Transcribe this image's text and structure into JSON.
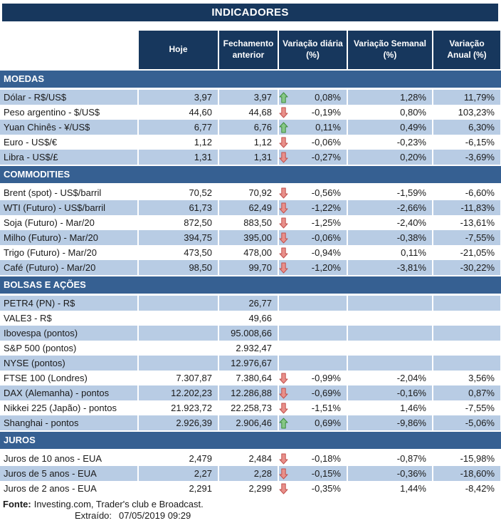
{
  "title": "INDICADORES",
  "columns": [
    "Hoje",
    "Fechamento anterior",
    "Variação diária (%)",
    "Variação Semanal (%)",
    "Variação Anual (%)"
  ],
  "colors": {
    "header_navy": "#17375D",
    "section_blue": "#366092",
    "stripe_blue": "#B8CCE4",
    "arrow_up_fill": "#86C786",
    "arrow_up_stroke": "#3C8C3C",
    "arrow_down_fill": "#E9908A",
    "arrow_down_stroke": "#C0504D"
  },
  "icons": {
    "up": "arrow-up-icon",
    "down": "arrow-down-icon"
  },
  "sections": [
    {
      "id": "moedas",
      "name": "MOEDAS",
      "rows": [
        {
          "label": "Dólar - R$/US$",
          "hoje": "3,97",
          "fechamento": "3,97",
          "arrow": "up",
          "diaria": "0,08%",
          "semanal": "1,28%",
          "anual": "11,79%"
        },
        {
          "label": "Peso argentino - $/US$",
          "hoje": "44,60",
          "fechamento": "44,68",
          "arrow": "down",
          "diaria": "-0,19%",
          "semanal": "0,80%",
          "anual": "103,23%"
        },
        {
          "label": "Yuan Chinês - ¥/US$",
          "hoje": "6,77",
          "fechamento": "6,76",
          "arrow": "up",
          "diaria": "0,11%",
          "semanal": "0,49%",
          "anual": "6,30%"
        },
        {
          "label": "Euro - US$/€",
          "hoje": "1,12",
          "fechamento": "1,12",
          "arrow": "down",
          "diaria": "-0,06%",
          "semanal": "-0,23%",
          "anual": "-6,15%"
        },
        {
          "label": "Libra - US$/£",
          "hoje": "1,31",
          "fechamento": "1,31",
          "arrow": "down",
          "diaria": "-0,27%",
          "semanal": "0,20%",
          "anual": "-3,69%"
        }
      ]
    },
    {
      "id": "commodities",
      "name": "COMMODITIES",
      "rows": [
        {
          "label": "Brent (spot) - US$/barril",
          "hoje": "70,52",
          "fechamento": "70,92",
          "arrow": "down",
          "diaria": "-0,56%",
          "semanal": "-1,59%",
          "anual": "-6,60%"
        },
        {
          "label": "WTI (Futuro) - US$/barril",
          "hoje": "61,73",
          "fechamento": "62,49",
          "arrow": "down",
          "diaria": "-1,22%",
          "semanal": "-2,66%",
          "anual": "-11,83%"
        },
        {
          "label": "Soja (Futuro) - Mar/20",
          "hoje": "872,50",
          "fechamento": "883,50",
          "arrow": "down",
          "diaria": "-1,25%",
          "semanal": "-2,40%",
          "anual": "-13,61%"
        },
        {
          "label": "Milho (Futuro) - Mar/20",
          "hoje": "394,75",
          "fechamento": "395,00",
          "arrow": "down",
          "diaria": "-0,06%",
          "semanal": "-0,38%",
          "anual": "-7,55%"
        },
        {
          "label": "Trigo (Futuro) - Mar/20",
          "hoje": "473,50",
          "fechamento": "478,00",
          "arrow": "down",
          "diaria": "-0,94%",
          "semanal": "0,11%",
          "anual": "-21,05%"
        },
        {
          "label": "Café (Futuro) - Mar/20",
          "hoje": "98,50",
          "fechamento": "99,70",
          "arrow": "down",
          "diaria": "-1,20%",
          "semanal": "-3,81%",
          "anual": "-30,22%"
        }
      ]
    },
    {
      "id": "bolsas-e-acoes",
      "name": "BOLSAS E AÇÕES",
      "rows": [
        {
          "label": "PETR4 (PN) - R$",
          "hoje": "",
          "fechamento": "26,77",
          "arrow": null,
          "diaria": "",
          "semanal": "",
          "anual": ""
        },
        {
          "label": "VALE3 - R$",
          "hoje": "",
          "fechamento": "49,66",
          "arrow": null,
          "diaria": "",
          "semanal": "",
          "anual": ""
        },
        {
          "label": "Ibovespa (pontos)",
          "hoje": "",
          "fechamento": "95.008,66",
          "arrow": null,
          "diaria": "",
          "semanal": "",
          "anual": ""
        },
        {
          "label": "S&P 500 (pontos)",
          "hoje": "",
          "fechamento": "2.932,47",
          "arrow": null,
          "diaria": "",
          "semanal": "",
          "anual": ""
        },
        {
          "label": "NYSE (pontos)",
          "hoje": "",
          "fechamento": "12.976,67",
          "arrow": null,
          "diaria": "",
          "semanal": "",
          "anual": ""
        },
        {
          "label": "FTSE 100 (Londres)",
          "hoje": "7.307,87",
          "fechamento": "7.380,64",
          "arrow": "down",
          "diaria": "-0,99%",
          "semanal": "-2,04%",
          "anual": "3,56%"
        },
        {
          "label": "DAX (Alemanha) - pontos",
          "hoje": "12.202,23",
          "fechamento": "12.286,88",
          "arrow": "down",
          "diaria": "-0,69%",
          "semanal": "-0,16%",
          "anual": "0,87%"
        },
        {
          "label": "Nikkei 225 (Japão) - pontos",
          "hoje": "21.923,72",
          "fechamento": "22.258,73",
          "arrow": "down",
          "diaria": "-1,51%",
          "semanal": "1,46%",
          "anual": "-7,55%"
        },
        {
          "label": "Shanghai - pontos",
          "hoje": "2.926,39",
          "fechamento": "2.906,46",
          "arrow": "up",
          "diaria": "0,69%",
          "semanal": "-9,86%",
          "anual": "-5,06%"
        }
      ]
    },
    {
      "id": "juros",
      "name": "JUROS",
      "rows": [
        {
          "label": "Juros de 10 anos - EUA",
          "hoje": "2,479",
          "fechamento": "2,484",
          "arrow": "down",
          "diaria": "-0,18%",
          "semanal": "-0,87%",
          "anual": "-15,98%"
        },
        {
          "label": "Juros de 5 anos - EUA",
          "hoje": "2,27",
          "fechamento": "2,28",
          "arrow": "down",
          "diaria": "-0,15%",
          "semanal": "-0,36%",
          "anual": "-18,60%"
        },
        {
          "label": "Juros de 2 anos - EUA",
          "hoje": "2,291",
          "fechamento": "2,299",
          "arrow": "down",
          "diaria": "-0,35%",
          "semanal": "1,44%",
          "anual": "-8,42%"
        }
      ]
    }
  ],
  "footer": {
    "source_label": "Fonte:",
    "source_text": "Investing.com, Trader's club e Broadcast.",
    "extracted_label": "Extraído:",
    "extracted_value": "07/05/2019 09:29"
  }
}
